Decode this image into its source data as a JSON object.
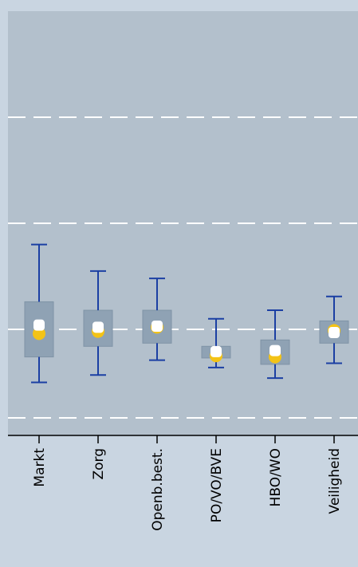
{
  "chart_data": {
    "type": "boxplot",
    "categories": [
      "Markt",
      "Zorg",
      "Openb.best.",
      "PO/VO/BVE",
      "HBO/WO",
      "Veiligheid"
    ],
    "ylim": [
      0,
      4
    ],
    "grid": "horizontal dashed",
    "series": [
      {
        "values": [
          {
            "min": 0.5,
            "q1": 0.74,
            "q3": 1.26,
            "max": 1.8,
            "mean": 1.04,
            "median": 0.96
          },
          {
            "min": 0.57,
            "q1": 0.84,
            "q3": 1.18,
            "max": 1.55,
            "mean": 1.02,
            "median": 0.98
          },
          {
            "min": 0.71,
            "q1": 0.87,
            "q3": 1.18,
            "max": 1.48,
            "mean": 1.03,
            "median": 1.02
          },
          {
            "min": 0.64,
            "q1": 0.73,
            "q3": 0.84,
            "max": 1.1,
            "mean": 0.79,
            "median": 0.75
          },
          {
            "min": 0.54,
            "q1": 0.67,
            "q3": 0.9,
            "max": 1.18,
            "mean": 0.8,
            "median": 0.74
          },
          {
            "min": 0.68,
            "q1": 0.87,
            "q3": 1.08,
            "max": 1.31,
            "mean": 0.97,
            "median": 0.99
          }
        ]
      }
    ],
    "colors": {
      "plot_background": "#b3c0cc",
      "page_background": "#c9d5e1",
      "box_fill": "#8fa2b4",
      "whisker": "#1b3fa3",
      "mean_marker": "#ffffff",
      "median_marker": "#f3c316",
      "gridline": "#ffffff"
    }
  }
}
